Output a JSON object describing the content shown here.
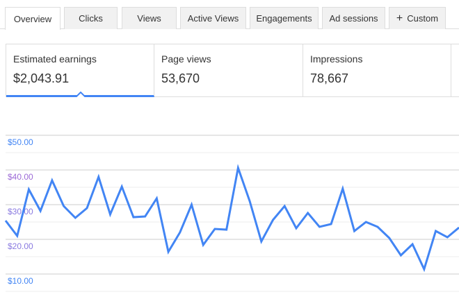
{
  "tabs": [
    {
      "label": "Overview",
      "active": true
    },
    {
      "label": "Clicks"
    },
    {
      "label": "Views"
    },
    {
      "label": "Active Views"
    },
    {
      "label": "Engagements"
    },
    {
      "label": "Ad sessions"
    },
    {
      "label": "Custom",
      "icon": "plus-icon",
      "icon_glyph": "+"
    }
  ],
  "metrics": [
    {
      "label": "Estimated earnings",
      "value": "$2,043.91",
      "selected": true
    },
    {
      "label": "Page views",
      "value": "53,670"
    },
    {
      "label": "Impressions",
      "value": "78,667"
    }
  ],
  "chart_data": {
    "type": "line",
    "ylim": [
      5,
      52
    ],
    "y_ticks": [
      {
        "value": 50,
        "label": "$50.00",
        "color": "#4285f4"
      },
      {
        "value": 40,
        "label": "$40.00",
        "color": "#9c6ad6"
      },
      {
        "value": 30,
        "label": "$30.00",
        "color": "#8a7ae0"
      },
      {
        "value": 20,
        "label": "$20.00",
        "color": "#8a7ae0"
      },
      {
        "value": 10,
        "label": "$10.00",
        "color": "#4285f4"
      }
    ],
    "grid": true,
    "line_color": "#4285f4",
    "series": [
      {
        "values": [
          25.4,
          21,
          34.4,
          28.2,
          37,
          29.6,
          26.2,
          29,
          38,
          27.2,
          35.2,
          26.4,
          26.6,
          31.8,
          16.4,
          22,
          30,
          18.4,
          23,
          22.8,
          40.6,
          31,
          19.4,
          25.6,
          29.6,
          23.2,
          27.6,
          23.6,
          24.4,
          34.6,
          22.4,
          25,
          23.6,
          20.4,
          15.4,
          18.6,
          11.4,
          22.4,
          20.6,
          23.4
        ]
      }
    ]
  }
}
